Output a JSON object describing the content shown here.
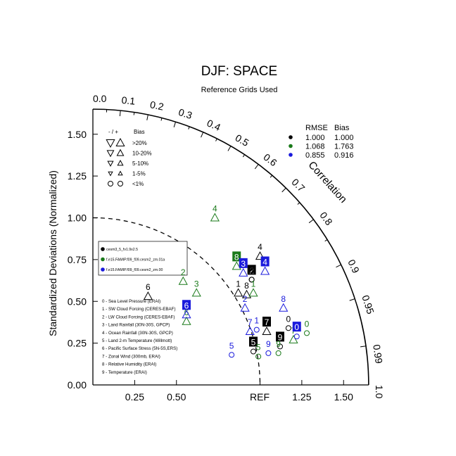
{
  "chart_data": {
    "type": "scatter",
    "subtype": "taylor-diagram",
    "title": "DJF: SPACE",
    "subtitle": "Reference Grids Used",
    "ylabel": "Standardized Deviations (Normalized)",
    "arc_label": "Correlation",
    "ref_label": "REF",
    "std_range": [
      0,
      1.65
    ],
    "y_ticks": [
      "0.00",
      "0.25",
      "0.50",
      "0.75",
      "1.00",
      "1.25",
      "1.50"
    ],
    "x_ticks": [
      "0.25",
      "0.50",
      "1.25",
      "1.50"
    ],
    "x_tick_values": [
      0.25,
      0.5,
      1.25,
      1.5
    ],
    "y_tick_values": [
      0,
      0.25,
      0.5,
      0.75,
      1.0,
      1.25,
      1.5
    ],
    "corr_ticks": [
      "0.0",
      "0.1",
      "0.2",
      "0.3",
      "0.4",
      "0.5",
      "0.6",
      "0.7",
      "0.8",
      "0.9",
      "0.95",
      "0.99",
      "1.0"
    ],
    "corr_tick_values": [
      0.0,
      0.1,
      0.2,
      0.3,
      0.4,
      0.5,
      0.6,
      0.7,
      0.8,
      0.9,
      0.95,
      0.99,
      1.0
    ],
    "bias_legend": {
      "header_sign": "- / +",
      "header": "Bias",
      "rows": [
        {
          "label": ">20%",
          "size": 1.0
        },
        {
          "label": "10-20%",
          "size": 0.8
        },
        {
          "label": "5-10%",
          "size": 0.65
        },
        {
          "label": "1-5%",
          "size": 0.5
        },
        {
          "label": "<1%",
          "size": 0.0
        }
      ]
    },
    "stats_table": {
      "headers": [
        "RMSE",
        "Bias"
      ],
      "rows": [
        {
          "color": "#000000",
          "rmse": "1.000",
          "bias": "1.000"
        },
        {
          "color": "#1a7a1a",
          "rmse": "1.068",
          "bias": "1.763"
        },
        {
          "color": "#1a1adc",
          "rmse": "0.855",
          "bias": "0.916"
        }
      ]
    },
    "series": [
      {
        "name": "cesm3_5_fv1.9x2.5",
        "color": "#000000",
        "points": [
          {
            "id": "0",
            "x": 1.17,
            "y": 0.34,
            "marker": "circle"
          },
          {
            "id": "1",
            "x": 0.87,
            "y": 0.55,
            "marker": "tri-up"
          },
          {
            "id": "2",
            "x": 0.95,
            "y": 0.63,
            "marker": "circle",
            "boxed": true
          },
          {
            "id": "3",
            "x": 0.95,
            "y": 0.63,
            "marker": "circle"
          },
          {
            "id": "4",
            "x": 1.0,
            "y": 0.77,
            "marker": "tri-up"
          },
          {
            "id": "5",
            "x": 0.96,
            "y": 0.2,
            "marker": "circle",
            "boxed": true
          },
          {
            "id": "6",
            "x": 0.33,
            "y": 0.53,
            "marker": "tri-up"
          },
          {
            "id": "7",
            "x": 1.04,
            "y": 0.32,
            "marker": "tri-up",
            "boxed": true
          },
          {
            "id": "8",
            "x": 0.92,
            "y": 0.54,
            "marker": "tri-up"
          },
          {
            "id": "9",
            "x": 1.12,
            "y": 0.23,
            "marker": "circle",
            "boxed": true
          }
        ]
      },
      {
        "name": "f.e15.FAMIP.f09_f09.cesm2_zm.01a",
        "color": "#1a7a1a",
        "points": [
          {
            "id": "0",
            "x": 1.28,
            "y": 0.31,
            "marker": "circle"
          },
          {
            "id": "1",
            "x": 0.96,
            "y": 0.55,
            "marker": "tri-up"
          },
          {
            "id": "2",
            "x": 0.54,
            "y": 0.62,
            "marker": "tri-up"
          },
          {
            "id": "3",
            "x": 0.62,
            "y": 0.55,
            "marker": "tri-up"
          },
          {
            "id": "4",
            "x": 0.73,
            "y": 1.0,
            "marker": "tri-up"
          },
          {
            "id": "5",
            "x": 0.99,
            "y": 0.17,
            "marker": "circle"
          },
          {
            "id": "6",
            "x": 0.56,
            "y": 0.38,
            "marker": "tri-up"
          },
          {
            "id": "7",
            "x": 1.2,
            "y": 0.27,
            "marker": "tri-up"
          },
          {
            "id": "8",
            "x": 0.86,
            "y": 0.71,
            "marker": "tri-up",
            "boxed": true
          },
          {
            "id": "9",
            "x": 1.11,
            "y": 0.19,
            "marker": "circle"
          }
        ]
      },
      {
        "name": "f.e15.FAMIP.f09_f09.cesm2_zm.00",
        "color": "#1a1adc",
        "points": [
          {
            "id": "0",
            "x": 1.22,
            "y": 0.29,
            "marker": "circle",
            "boxed": true
          },
          {
            "id": "1",
            "x": 0.98,
            "y": 0.33,
            "marker": "circle"
          },
          {
            "id": "2",
            "x": 0.91,
            "y": 0.46,
            "marker": "tri-up"
          },
          {
            "id": "3",
            "x": 0.9,
            "y": 0.67,
            "marker": "tri-up",
            "boxed": true
          },
          {
            "id": "4",
            "x": 1.03,
            "y": 0.68,
            "marker": "tri-up",
            "boxed": true
          },
          {
            "id": "5",
            "x": 0.83,
            "y": 0.18,
            "marker": "circle"
          },
          {
            "id": "6",
            "x": 0.56,
            "y": 0.42,
            "marker": "tri-up",
            "boxed": true
          },
          {
            "id": "7",
            "x": 0.94,
            "y": 0.32,
            "marker": "tri-up"
          },
          {
            "id": "8",
            "x": 1.14,
            "y": 0.46,
            "marker": "tri-up"
          },
          {
            "id": "9",
            "x": 1.05,
            "y": 0.19,
            "marker": "circle"
          }
        ]
      }
    ],
    "case_legend": [
      {
        "label": "cesm3_5_fv1.9x2.5",
        "color": "#000000"
      },
      {
        "label": "f.e15.FAMIP.f09_f09.cesm2_zm.01a",
        "color": "#1a7a1a"
      },
      {
        "label": "f.e15.FAMIP.f09_f09.cesm2_zm.00",
        "color": "#1a1adc"
      }
    ],
    "variables": [
      "0 - Sea Level Pressure (ERAI)",
      "1 - SW Cloud Forcing (CERES-EBAF)",
      "2 - LW Cloud Forcing (CERES-EBAF)",
      "3 - Land Rainfall (30N-30S, GPCP)",
      "4 - Ocean Rainfall (30N-30S, GPCP)",
      "5 - Land 2-m Temperature (Willmott)",
      "6 - Pacific Surface Stress (5N-5S,ERS)",
      "7 - Zonal Wind (300mb, ERAI)",
      "8 - Relative Humidity (ERAI)",
      "9 - Temperature (ERAI)"
    ]
  }
}
